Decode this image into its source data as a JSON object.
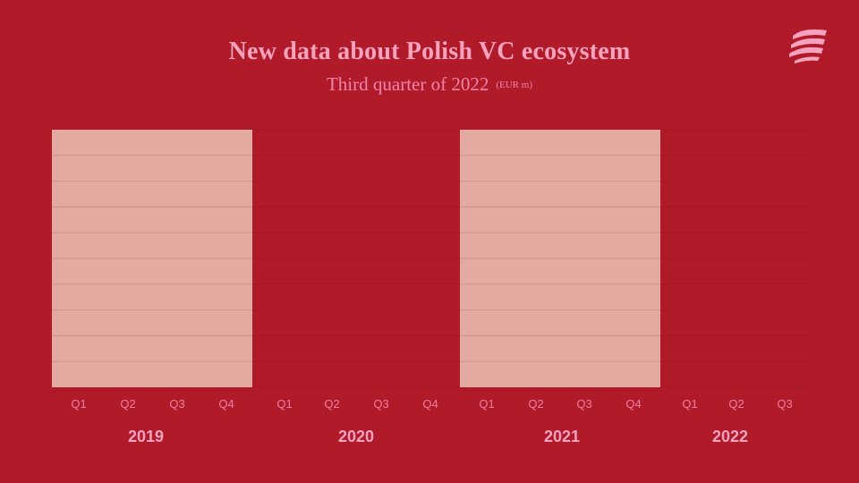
{
  "header": {
    "title": "New data about Polish VC ecosystem",
    "subtitle": "Third quarter of 2022",
    "unit": "(EUR m)"
  },
  "logo": {
    "icon": "stacked-waves-logo-icon",
    "color": "#f7a3bf"
  },
  "colors": {
    "background": "#b11a29",
    "panel": "#e2aaa0",
    "gridline": "#a81727",
    "panel_gridline": "#c8938a",
    "quarter_text": "#ef7fa3",
    "year_text": "#f7a3bf"
  },
  "chart_data": {
    "type": "bar",
    "title": "New data about Polish VC ecosystem",
    "subtitle": "Third quarter of 2022",
    "unit": "(EUR m)",
    "groups": [
      {
        "year": "2019",
        "quarters": [
          "Q1",
          "Q2",
          "Q3",
          "Q4"
        ],
        "highlighted": true
      },
      {
        "year": "2020",
        "quarters": [
          "Q1",
          "Q2",
          "Q3",
          "Q4"
        ],
        "highlighted": false
      },
      {
        "year": "2021",
        "quarters": [
          "Q1",
          "Q2",
          "Q3",
          "Q4"
        ],
        "highlighted": true
      },
      {
        "year": "2022",
        "quarters": [
          "Q1",
          "Q2",
          "Q3"
        ],
        "highlighted": false
      }
    ],
    "values": [],
    "grid": true,
    "gridline_count": 10,
    "legend": "none"
  }
}
